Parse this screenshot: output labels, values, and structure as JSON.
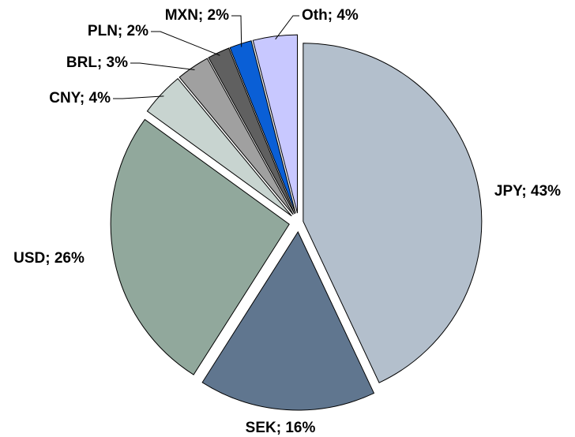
{
  "chart_data": {
    "type": "pie",
    "values": [
      43,
      16,
      26,
      4,
      3,
      2,
      2,
      4
    ],
    "value_labels": [
      "JPY; 43%",
      "SEK; 16%",
      "USD; 26%",
      "CNY; 4%",
      "BRL; 3%",
      "PLN; 2%",
      "MXN; 2%",
      "Oth; 4%"
    ],
    "colors": [
      "#b3bfcc",
      "#60768f",
      "#91a89c",
      "#c8d4d0",
      "#a0a0a0",
      "#606060",
      "#0a5fd6",
      "#c8c8ff"
    ]
  }
}
